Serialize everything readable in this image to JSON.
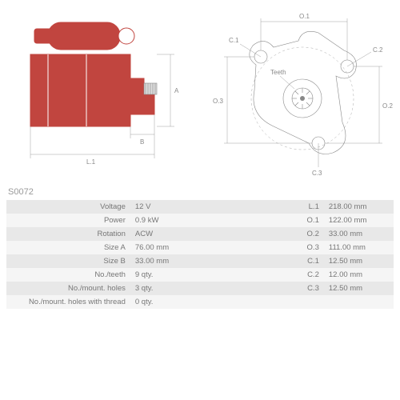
{
  "part_number": "S0072",
  "specs_left": [
    {
      "label": "Voltage",
      "value": "12 V"
    },
    {
      "label": "Power",
      "value": "0.9 kW"
    },
    {
      "label": "Rotation",
      "value": "ACW"
    },
    {
      "label": "Size A",
      "value": "76.00 mm"
    },
    {
      "label": "Size B",
      "value": "33.00 mm"
    },
    {
      "label": "No./teeth",
      "value": "9 qty."
    },
    {
      "label": "No./mount. holes",
      "value": "3 qty."
    },
    {
      "label": "No./mount. holes with thread",
      "value": "0 qty."
    }
  ],
  "specs_right": [
    {
      "label": "L.1",
      "value": "218.00 mm"
    },
    {
      "label": "O.1",
      "value": "122.00 mm"
    },
    {
      "label": "O.2",
      "value": "33.00 mm"
    },
    {
      "label": "O.3",
      "value": "111.00 mm"
    },
    {
      "label": "C.1",
      "value": "12.50 mm"
    },
    {
      "label": "C.2",
      "value": "12.00 mm"
    },
    {
      "label": "C.3",
      "value": "12.50 mm"
    }
  ],
  "dim_labels": {
    "A": "A",
    "B": "B",
    "L1": "L.1",
    "O1": "O.1",
    "O2": "O.2",
    "O3": "O.3",
    "C1": "C.1",
    "C2": "C.2",
    "C3": "C.3",
    "teeth": "Teeth"
  },
  "colors": {
    "red": "#c1453f",
    "line": "#888888",
    "row_odd": "#e8e8e8",
    "row_even": "#f5f5f5"
  }
}
